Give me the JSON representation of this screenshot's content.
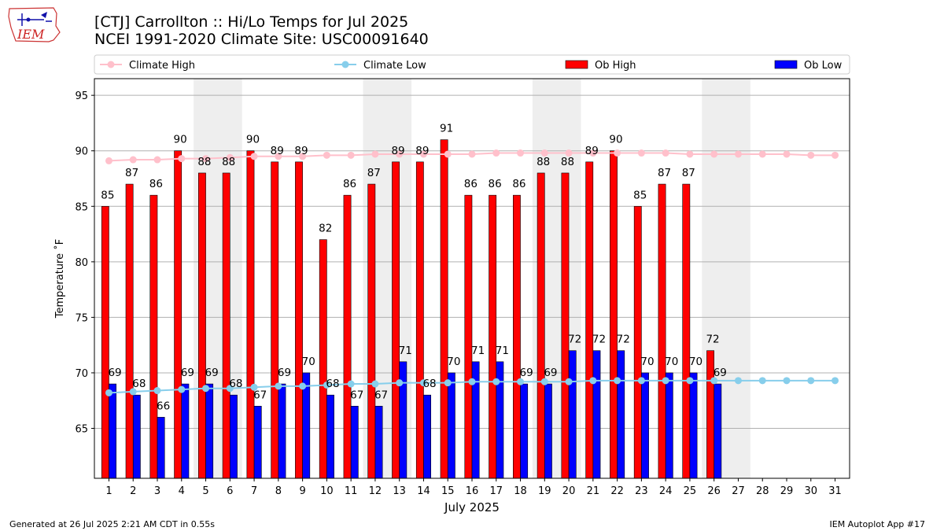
{
  "header": {
    "title_line1": "[CTJ] Carrollton :: Hi/Lo Temps for Jul 2025",
    "title_line2": "NCEI 1991-2020 Climate Site: USC00091640",
    "logo_text": "IEM"
  },
  "footer": {
    "generated": "Generated at 26 Jul 2025 2:21 AM CDT in 0.55s",
    "app": "IEM Autoplot App #17"
  },
  "colors": {
    "climate_high": "#ffc0cb",
    "climate_low": "#87ceeb",
    "ob_high": "#ff0000",
    "ob_low": "#0000ff",
    "weekend_shade": "#eeeeee",
    "grid": "#b0b0b0"
  },
  "chart_data": {
    "type": "bar",
    "xlabel": "July 2025",
    "ylabel": "Temperature ˚F",
    "ylim": [
      60.5,
      96.5
    ],
    "yticks": [
      65,
      70,
      75,
      80,
      85,
      90,
      95
    ],
    "grid": "horizontal",
    "legend_position": "top",
    "categories": [
      "1",
      "2",
      "3",
      "4",
      "5",
      "6",
      "7",
      "8",
      "9",
      "10",
      "11",
      "12",
      "13",
      "14",
      "15",
      "16",
      "17",
      "18",
      "19",
      "20",
      "21",
      "22",
      "23",
      "24",
      "25",
      "26",
      "27",
      "28",
      "29",
      "30",
      "31"
    ],
    "shaded_days": [
      [
        5,
        6
      ],
      [
        12,
        13
      ],
      [
        19,
        20
      ],
      [
        26,
        27
      ]
    ],
    "series": [
      {
        "name": "Climate High",
        "kind": "line",
        "values": [
          89.1,
          89.2,
          89.2,
          89.3,
          89.3,
          89.4,
          89.5,
          89.5,
          89.5,
          89.6,
          89.6,
          89.7,
          89.7,
          89.7,
          89.7,
          89.7,
          89.8,
          89.8,
          89.8,
          89.8,
          89.8,
          89.8,
          89.8,
          89.8,
          89.7,
          89.7,
          89.7,
          89.7,
          89.7,
          89.6,
          89.6
        ]
      },
      {
        "name": "Climate Low",
        "kind": "line",
        "values": [
          68.2,
          68.3,
          68.4,
          68.5,
          68.6,
          68.6,
          68.7,
          68.8,
          68.8,
          68.9,
          69.0,
          69.0,
          69.1,
          69.1,
          69.1,
          69.2,
          69.2,
          69.2,
          69.2,
          69.2,
          69.3,
          69.3,
          69.3,
          69.3,
          69.3,
          69.3,
          69.3,
          69.3,
          69.3,
          69.3,
          69.3
        ]
      },
      {
        "name": "Ob High",
        "kind": "bar",
        "values": [
          85,
          87,
          86,
          90,
          88,
          88,
          90,
          89,
          89,
          82,
          86,
          87,
          89,
          89,
          91,
          86,
          86,
          86,
          88,
          88,
          89,
          90,
          85,
          87,
          87,
          72,
          null,
          null,
          null,
          null,
          null
        ]
      },
      {
        "name": "Ob Low",
        "kind": "bar",
        "values": [
          69,
          68,
          66,
          69,
          69,
          68,
          67,
          69,
          70,
          68,
          67,
          67,
          71,
          68,
          70,
          71,
          71,
          69,
          69,
          72,
          72,
          72,
          70,
          70,
          70,
          69,
          null,
          null,
          null,
          null,
          null
        ]
      }
    ]
  }
}
